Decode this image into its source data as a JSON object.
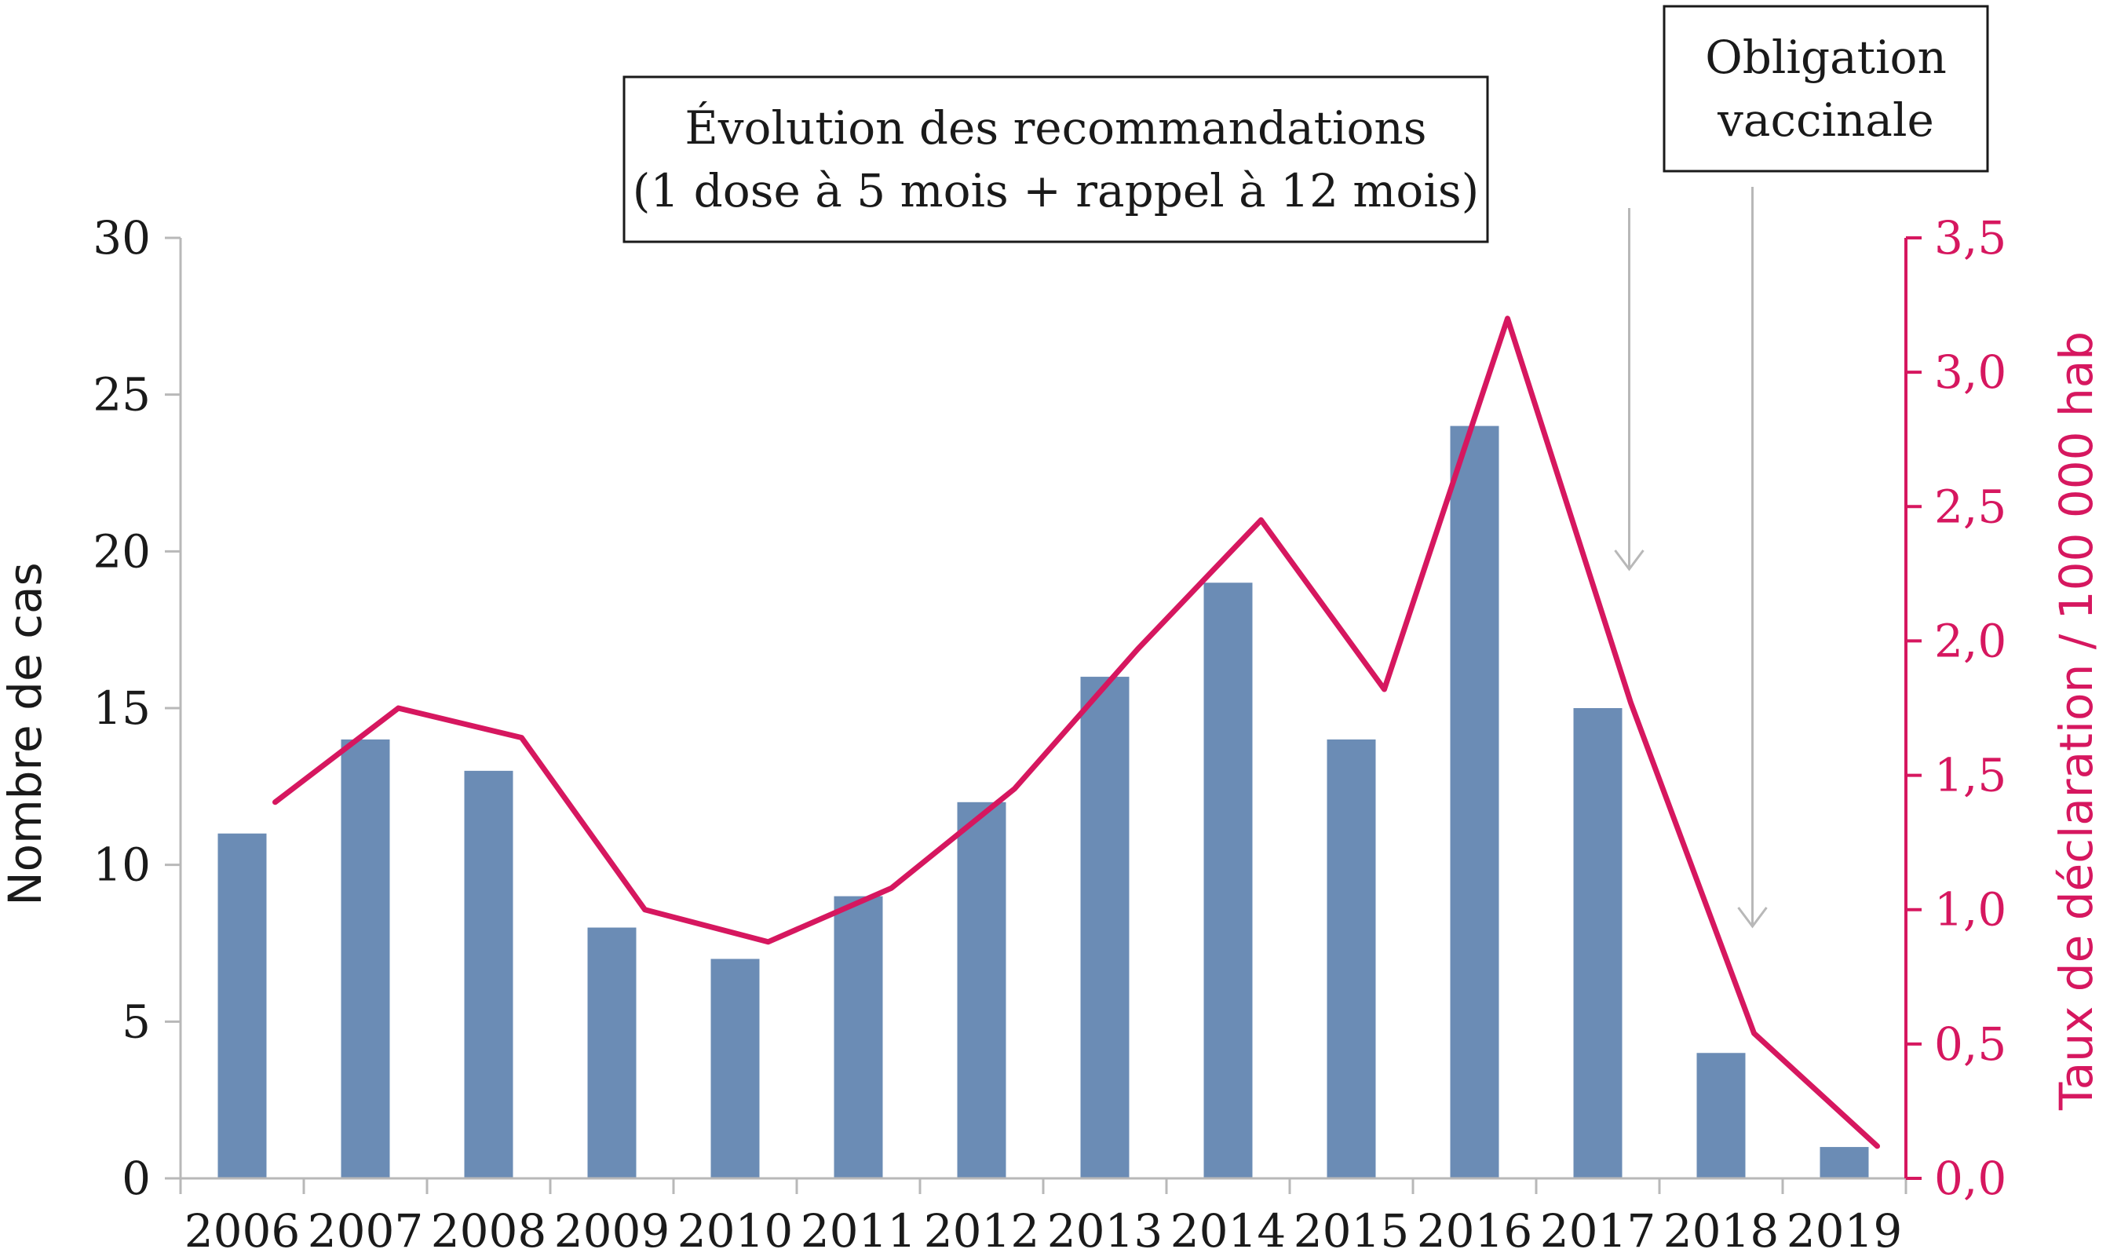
{
  "chart_data": {
    "type": "bar",
    "categories": [
      "2006",
      "2007",
      "2008",
      "2009",
      "2010",
      "2011",
      "2012",
      "2013",
      "2014",
      "2015",
      "2016",
      "2017",
      "2018",
      "2019"
    ],
    "series": [
      {
        "type": "bar",
        "axis": "left",
        "values": [
          11,
          14,
          13,
          8,
          7,
          9,
          12,
          16,
          19,
          14,
          24,
          15,
          4,
          1
        ]
      },
      {
        "type": "line",
        "axis": "right",
        "values": [
          1.4,
          1.75,
          1.64,
          1.0,
          0.88,
          1.08,
          1.45,
          1.97,
          2.45,
          1.82,
          3.2,
          1.77,
          0.54,
          0.12
        ]
      }
    ],
    "ylabel": "Nombre de cas",
    "ylabel_right": "Taux de déclaration / 100 000 hab",
    "ylim": [
      0,
      30
    ],
    "ylim_right": [
      0,
      3.5
    ],
    "yticks": [
      "0",
      "5",
      "10",
      "15",
      "20",
      "25",
      "30"
    ],
    "yticks_right": [
      "0,0",
      "0,5",
      "1,0",
      "1,5",
      "2,0",
      "2,5",
      "3,0",
      "3,5"
    ],
    "grid": false,
    "colors": {
      "bar": "#6b8cb5",
      "line": "#d6175f",
      "arrow": "#b8b8b8",
      "axis": "#b8b8b8"
    },
    "annotations": [
      {
        "lines": [
          "Évolution des recommandations",
          "(1 dose à 5 mois + rappel à 12 mois)"
        ],
        "arrow_at": "2017"
      },
      {
        "lines": [
          "Obligation",
          "vaccinale"
        ],
        "arrow_at": "2018"
      }
    ]
  }
}
